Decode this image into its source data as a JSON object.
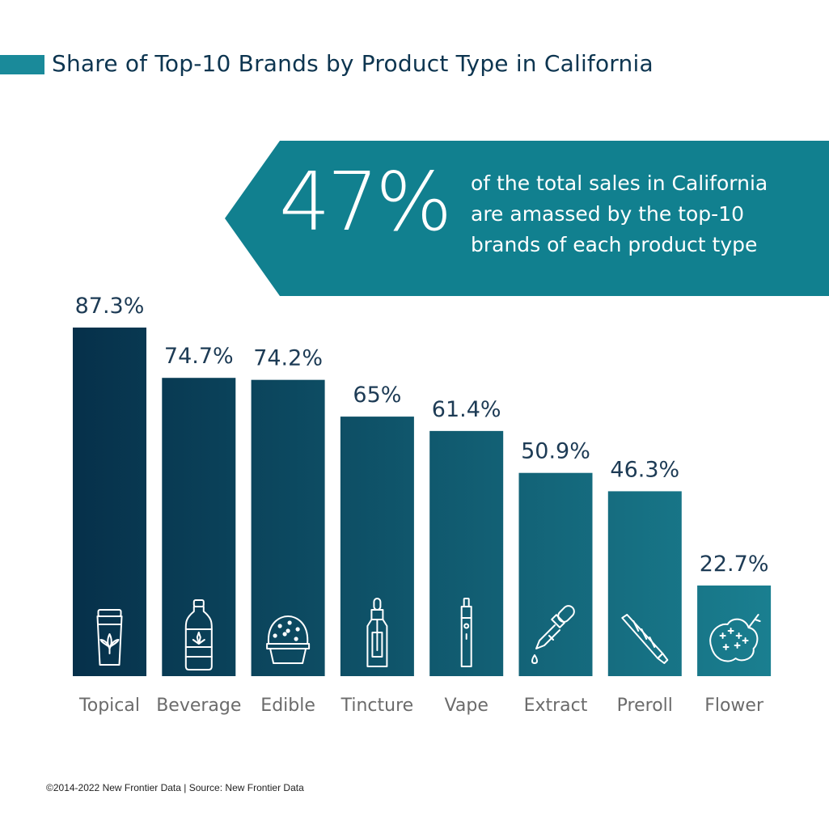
{
  "title": "Share of Top-10 Brands by Product Type in California",
  "callout": {
    "value": "47%",
    "lines": [
      "of the total sales in California",
      "are amassed by the top-10",
      "brands of each product type"
    ]
  },
  "footer": "©2014-2022  New Frontier Data | Source: New Frontier Data",
  "colors": {
    "accent": "#1a8a9a",
    "title": "#0d3550",
    "bar_dark": "#06304a",
    "bar_light": "#1a7f90",
    "callout_bg": "#11808f",
    "label_value": "#1d3b55",
    "label_category": "#6b6b6b"
  },
  "chart_data": {
    "type": "bar",
    "categories": [
      "Topical",
      "Beverage",
      "Edible",
      "Tincture",
      "Vape",
      "Extract",
      "Preroll",
      "Flower"
    ],
    "values": [
      87.3,
      74.7,
      74.2,
      65,
      61.4,
      50.9,
      46.3,
      22.7
    ],
    "value_labels": [
      "87.3%",
      "74.7%",
      "74.2%",
      "65%",
      "61.4%",
      "50.9%",
      "46.3%",
      "22.7%"
    ],
    "icons": [
      "cream-jar-icon",
      "bottle-icon",
      "cupcake-icon",
      "dropper-bottle-icon",
      "vape-pen-icon",
      "pipette-icon",
      "joint-icon",
      "cannabis-bud-icon"
    ],
    "title": "Share of Top-10 Brands by Product Type in California",
    "xlabel": "",
    "ylabel": "",
    "grid": false
  }
}
